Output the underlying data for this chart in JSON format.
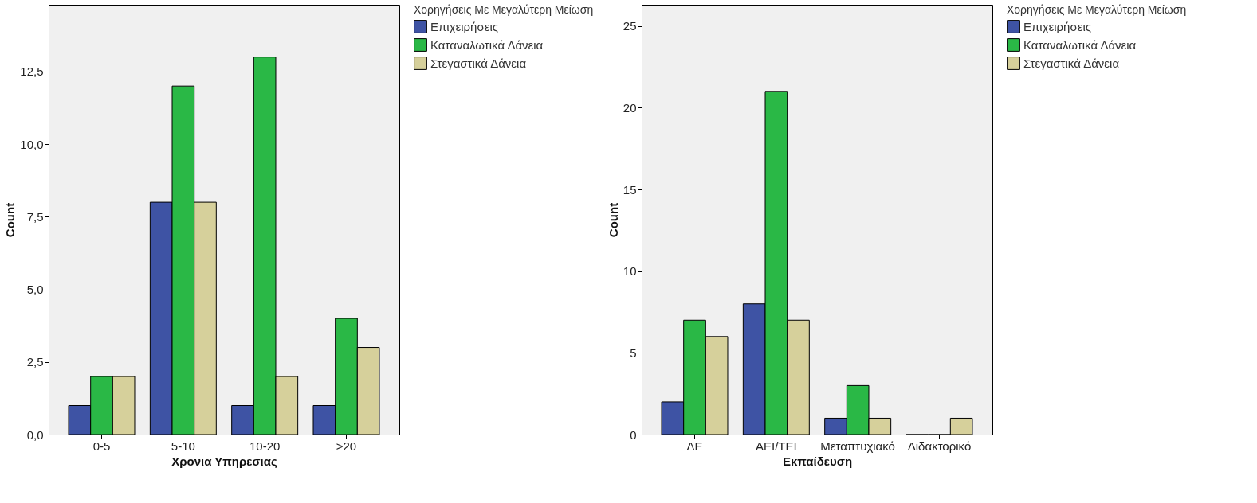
{
  "chart_data": [
    {
      "type": "bar",
      "xlabel": "Χρονια Υπηρεσιας",
      "ylabel": "Count",
      "legend_title": "Χορηγήσεις Με Μεγαλύτερη Μείωση",
      "legend": "right",
      "grid": false,
      "categories": [
        "0-5",
        "5-10",
        "10-20",
        ">20"
      ],
      "ylim": [
        0,
        14.8
      ],
      "yticks": [
        {
          "value": 0,
          "label": "0,0"
        },
        {
          "value": 2.5,
          "label": "2,5"
        },
        {
          "value": 5,
          "label": "5,0"
        },
        {
          "value": 7.5,
          "label": "7,5"
        },
        {
          "value": 10,
          "label": "10,0"
        },
        {
          "value": 12.5,
          "label": "12,5"
        }
      ],
      "series": [
        {
          "name": "Επιχειρήσεις",
          "color": "#3e53a4",
          "values": [
            1,
            8,
            1,
            1
          ]
        },
        {
          "name": "Καταναλωτικά Δάνεια",
          "color": "#2ab846",
          "values": [
            2,
            12,
            13,
            4
          ]
        },
        {
          "name": "Στεγαστικά Δάνεια",
          "color": "#d6d09b",
          "values": [
            2,
            8,
            2,
            3
          ]
        }
      ]
    },
    {
      "type": "bar",
      "xlabel": "Εκπαίδευση",
      "ylabel": "Count",
      "legend_title": "Χορηγήσεις Με Μεγαλύτερη Μείωση",
      "legend": "right",
      "grid": false,
      "categories": [
        "ΔΕ",
        "ΑΕΙ/ΤΕΙ",
        "Μεταπτυχιακό",
        "Διδακτορικό"
      ],
      "ylim": [
        0,
        26.3
      ],
      "yticks": [
        0,
        5,
        10,
        15,
        20,
        25
      ],
      "series": [
        {
          "name": "Επιχειρήσεις",
          "color": "#3e53a4",
          "values": [
            2,
            8,
            1,
            0
          ]
        },
        {
          "name": "Καταναλωτικά Δάνεια",
          "color": "#2ab846",
          "values": [
            7,
            21,
            3,
            0
          ]
        },
        {
          "name": "Στεγαστικά Δάνεια",
          "color": "#d6d09b",
          "values": [
            6,
            7,
            1,
            1
          ]
        }
      ]
    }
  ]
}
